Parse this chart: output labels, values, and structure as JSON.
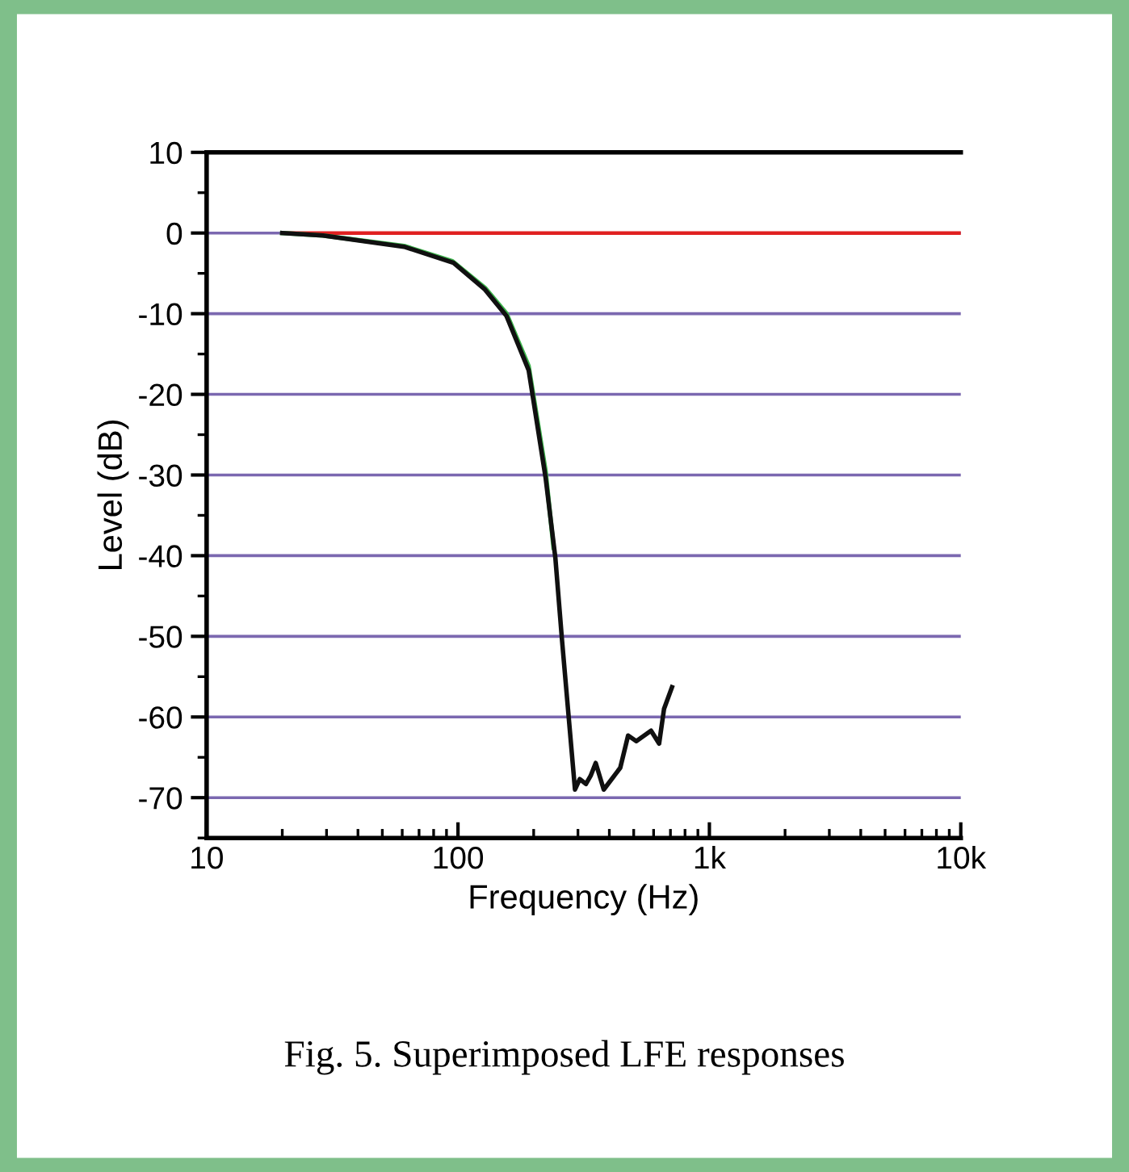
{
  "chart_data": {
    "type": "line",
    "xlabel": "Frequency (Hz)",
    "ylabel": "Level (dB)",
    "annotations": [
      "Fig. 5. Superimposed LFE responses"
    ],
    "log": "x",
    "xlim": [
      10,
      10000
    ],
    "xticks": [
      10,
      100,
      {
        "value": 1000,
        "label": "1k"
      },
      {
        "value": 10000,
        "label": "10k"
      }
    ],
    "ylim": [
      -75,
      10
    ],
    "yticks": [
      10,
      0,
      -10,
      -20,
      -30,
      -40,
      -50,
      -60,
      -70
    ],
    "grid": "y",
    "line_style": "solid",
    "marker": "none",
    "series": [
      {
        "color": "#e02020",
        "x": [
          20,
          10000
        ],
        "values": [
          0,
          0
        ]
      },
      {
        "color": "#3cb44b",
        "x": [
          20,
          29,
          61,
          95,
          128,
          156,
          191,
          223,
          240
        ],
        "values": [
          0,
          -0.3,
          -1.6,
          -3.5,
          -6.8,
          -10,
          -16.5,
          -29.5,
          -39
        ]
      },
      {
        "color": "#101010",
        "x": [
          20,
          29,
          61,
          96,
          128,
          156,
          191,
          223,
          244,
          259,
          292,
          305,
          323,
          337,
          353,
          380,
          442,
          475,
          512,
          586,
          631,
          660,
          710
        ],
        "values": [
          0,
          -0.3,
          -1.7,
          -3.7,
          -7,
          -10.3,
          -17,
          -30.3,
          -40.3,
          -50.3,
          -69,
          -67.7,
          -68.3,
          -67.3,
          -65.7,
          -69,
          -66.3,
          -62.3,
          -63,
          -61.7,
          -63.3,
          -59,
          -56.3
        ]
      }
    ]
  }
}
